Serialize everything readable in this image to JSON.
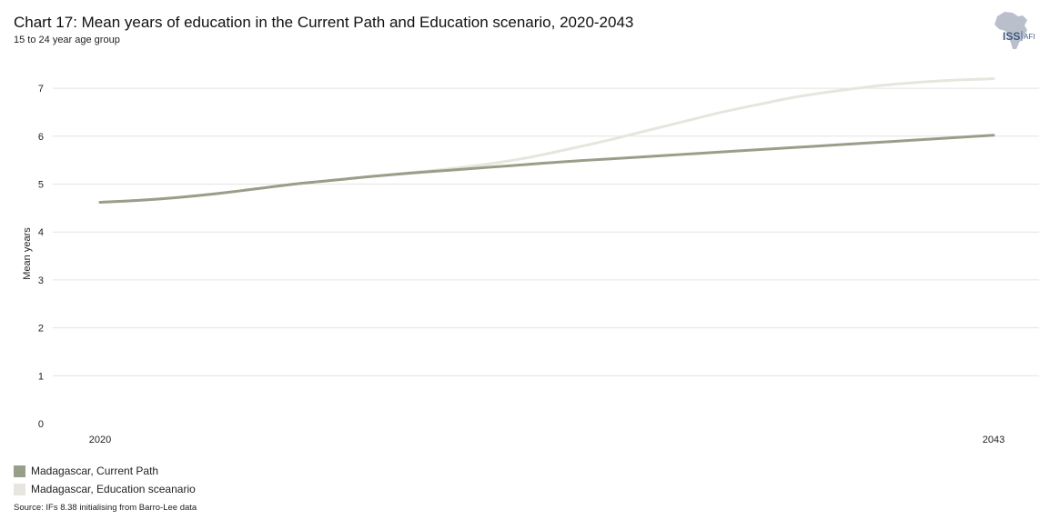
{
  "header": {
    "title": "Chart 17: Mean years of education in the Current Path and Education scenario, 2020-2043",
    "subtitle": "15 to 24 year age group"
  },
  "logo": {
    "brand": "ISS",
    "suffix": "AFI",
    "icon": "africa-map-icon",
    "color": "#b9c0cc",
    "text_color": "#3d5a80"
  },
  "chart_data": {
    "type": "line",
    "title": "Chart 17: Mean years of education in the Current Path and Education scenario, 2020-2043",
    "subtitle": "15 to 24 year age group",
    "xlabel": "",
    "ylabel": "Mean years",
    "x": [
      2020,
      2021,
      2022,
      2023,
      2024,
      2025,
      2026,
      2027,
      2028,
      2029,
      2030,
      2031,
      2032,
      2033,
      2034,
      2035,
      2036,
      2037,
      2038,
      2039,
      2040,
      2041,
      2042,
      2043
    ],
    "x_tick_labels": [
      "2020",
      "2043"
    ],
    "y_ticks": [
      0,
      1,
      2,
      3,
      4,
      5,
      6,
      7
    ],
    "ylim": [
      0,
      7.4
    ],
    "grid": true,
    "series": [
      {
        "name": "Madagascar, Current Path",
        "color": "#989f88",
        "values": [
          4.62,
          4.66,
          4.72,
          4.8,
          4.9,
          5.0,
          5.08,
          5.16,
          5.23,
          5.29,
          5.35,
          5.41,
          5.47,
          5.52,
          5.57,
          5.62,
          5.67,
          5.72,
          5.77,
          5.82,
          5.87,
          5.92,
          5.97,
          6.02
        ]
      },
      {
        "name": "Madagascar, Education sceanario",
        "color": "#e6e6de",
        "values": [
          4.62,
          4.66,
          4.72,
          4.8,
          4.9,
          5.0,
          5.08,
          5.16,
          5.24,
          5.32,
          5.42,
          5.55,
          5.72,
          5.9,
          6.1,
          6.3,
          6.5,
          6.67,
          6.83,
          6.95,
          7.05,
          7.12,
          7.17,
          7.2
        ]
      }
    ],
    "legend_position": "bottom-left"
  },
  "legend": [
    {
      "label": "Madagascar, Current Path",
      "color": "#989f88"
    },
    {
      "label": "Madagascar, Education sceanario",
      "color": "#e6e6de"
    }
  ],
  "source": "Source: IFs 8.38 initialising from Barro-Lee data"
}
